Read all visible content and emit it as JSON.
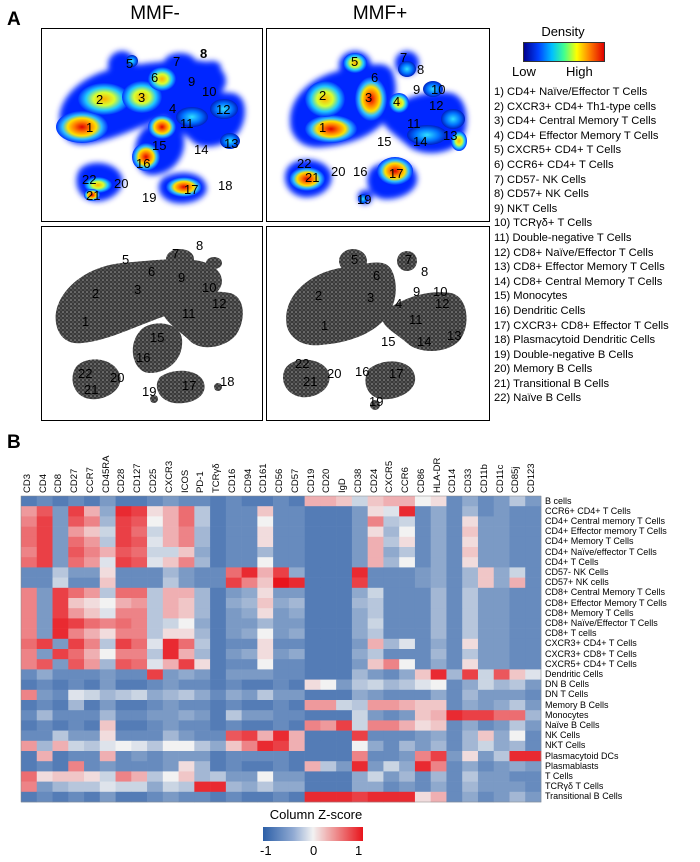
{
  "panel_a": {
    "letter": "A",
    "mmf_minus_title": "MMF-",
    "mmf_plus_title": "MMF+",
    "density_legend": {
      "title": "Density",
      "low": "Low",
      "high": "High"
    },
    "populations": [
      "1) CD4+ Naïve/Effector T Cells",
      "2) CXCR3+ CD4+ Th1-type cells",
      "3) CD4+ Central Memory T Cells",
      "4) CD4+ Effector Memory T Cells",
      "5) CXCR5+ CD4+ T Cells",
      "6) CCR6+ CD4+ T Cells",
      "7) CD57- NK Cells",
      "8) CD57+ NK Cells",
      "9) NKT Cells",
      "10) TCRγδ+ T Cells",
      "11) Double-negative T Cells",
      "12) CD8+ Naïve/Effector T Cells",
      "13) CD8+ Effector Memory T Cells",
      "14) CD8+ Central Memory T Cells",
      "15) Monocytes",
      "16) Dendritic Cells",
      "17) CXCR3+ CD8+ Effector T Cells",
      "18) Plasmacytoid Dendritic Cells",
      "19) Double-negative B Cells",
      "20) Memory B Cells",
      "21) Transitional B Cells",
      "22) Naïve B Cells"
    ],
    "cluster_labels_minus": [
      "1",
      "2",
      "3",
      "4",
      "5",
      "6",
      "7",
      "8",
      "9",
      "10",
      "11",
      "12",
      "13",
      "14",
      "15",
      "16",
      "17",
      "18",
      "19",
      "20",
      "21",
      "22"
    ],
    "cluster_labels_plus": [
      "1",
      "2",
      "3",
      "4",
      "5",
      "6",
      "7",
      "8",
      "9",
      "10",
      "11",
      "12",
      "13",
      "14",
      "15",
      "16",
      "17",
      "18",
      "19",
      "20",
      "21",
      "22"
    ]
  },
  "panel_b": {
    "letter": "B",
    "colorbar": {
      "title": "Column Z-score",
      "min_label": "-1",
      "mid_label": "0",
      "max_label": "1"
    },
    "colors": {
      "low": "#2c5fa7",
      "mid": "#f2f2f2",
      "high": "#e8141b"
    }
  },
  "chart_data": {
    "type": "heatmap",
    "title": "",
    "xlabel": "",
    "ylabel": "",
    "colorbar_label": "Column Z-score",
    "zlim": [
      -1,
      1
    ],
    "columns": [
      "CD3",
      "CD4",
      "CD8",
      "CD27",
      "CCR7",
      "CD45RA",
      "CD28",
      "CD127",
      "CD25",
      "CXCR3",
      "ICOS",
      "PD-1",
      "TCRγδ",
      "CD16",
      "CD94",
      "CD161",
      "CD56",
      "CD57",
      "CD19",
      "CD20",
      "IgD",
      "CD38",
      "CD24",
      "CXCR5",
      "CCR6",
      "CD86",
      "HLA-DR",
      "CD14",
      "CD33",
      "CD11b",
      "CD11c",
      "CD85j",
      "CD123"
    ],
    "rows": [
      "B cells",
      "CCR6+ CD4+ T Cells",
      "CD4+ Central memory T Cells",
      "CD4+ Effector memory T Cells",
      "CD4+ Memory T Cells",
      "CD4+ Naïve/effector T Cells",
      "CD4+ T Cells",
      "CD57- NK Cells",
      "CD57+ NK cells",
      "CD8+ Central Memory T Cells",
      "CD8+ Effector Memory T Cells",
      "CD8+ Memory T Cells",
      "CD8+ Naïve/Effector T Cells",
      "CD8+ T cells",
      "CXCR3+ CD4+ T Cells",
      "CXCR3+ CD8+ T Cells",
      "CXCR5+ CD4+ T Cells",
      "Dendritic Cells",
      "DN B Cells",
      "DN T Cells",
      "Memory B Cells",
      "Monocytes",
      "Naïve B Cells",
      "NK Cells",
      "NKT Cells",
      "Plasmacytoid DCs",
      "Plasmablasts",
      "T Cells",
      "TCRγδ T Cells",
      "Transitional B Cells"
    ],
    "values": [
      [
        -0.8,
        -0.7,
        -0.8,
        -0.7,
        -0.8,
        -0.6,
        -0.8,
        -0.8,
        -0.7,
        -0.6,
        -0.7,
        -0.7,
        -0.8,
        -0.7,
        -0.8,
        -0.8,
        -0.7,
        -0.8,
        0.3,
        0.3,
        0.2,
        -0.2,
        0.2,
        0.3,
        0.3,
        0.0,
        0.1,
        -0.7,
        -0.5,
        -0.7,
        -0.6,
        -0.3,
        -0.6
      ],
      [
        0.4,
        0.7,
        -0.6,
        0.8,
        0.3,
        -0.5,
        0.9,
        0.8,
        0.1,
        0.3,
        0.6,
        -0.3,
        -0.8,
        -0.7,
        -0.7,
        0.2,
        -0.7,
        -0.7,
        -0.8,
        -0.8,
        -0.8,
        -0.6,
        0.1,
        -0.1,
        0.9,
        -0.7,
        -0.5,
        -0.7,
        -0.4,
        -0.7,
        -0.6,
        -0.7,
        -0.7
      ],
      [
        0.5,
        0.8,
        -0.6,
        0.7,
        0.5,
        -0.4,
        0.8,
        0.7,
        0.0,
        0.3,
        0.6,
        -0.3,
        -0.8,
        -0.7,
        -0.7,
        0.0,
        -0.7,
        -0.7,
        -0.8,
        -0.8,
        -0.8,
        -0.6,
        0.5,
        -0.3,
        -0.2,
        -0.7,
        -0.5,
        -0.7,
        0.1,
        -0.6,
        -0.6,
        -0.7,
        -0.7
      ],
      [
        0.6,
        0.8,
        -0.6,
        0.4,
        0.2,
        -0.2,
        0.8,
        0.6,
        -0.2,
        0.3,
        0.5,
        -0.4,
        -0.8,
        -0.7,
        -0.7,
        0.1,
        -0.7,
        -0.7,
        -0.8,
        -0.8,
        -0.8,
        -0.6,
        0.1,
        -0.4,
        0.0,
        -0.7,
        -0.5,
        -0.7,
        0.2,
        -0.6,
        -0.6,
        -0.7,
        -0.7
      ],
      [
        0.6,
        0.8,
        -0.6,
        0.6,
        0.4,
        -0.3,
        0.8,
        0.7,
        -0.1,
        0.3,
        0.5,
        -0.4,
        -0.8,
        -0.7,
        -0.7,
        0.1,
        -0.7,
        -0.7,
        -0.8,
        -0.8,
        -0.8,
        -0.6,
        0.3,
        -0.3,
        0.1,
        -0.7,
        -0.5,
        -0.7,
        0.1,
        -0.6,
        -0.6,
        -0.7,
        -0.7
      ],
      [
        0.5,
        0.8,
        -0.6,
        0.7,
        0.5,
        0.3,
        0.7,
        0.6,
        -0.2,
        -0.2,
        0.2,
        -0.5,
        -0.8,
        -0.7,
        -0.7,
        -0.4,
        -0.7,
        -0.7,
        -0.8,
        -0.8,
        -0.8,
        -0.6,
        0.3,
        -0.5,
        -0.3,
        -0.7,
        -0.5,
        -0.7,
        0.2,
        -0.6,
        -0.6,
        -0.7,
        -0.7
      ],
      [
        0.6,
        0.8,
        -0.6,
        0.6,
        0.4,
        -0.1,
        0.8,
        0.7,
        -0.1,
        0.2,
        0.5,
        -0.4,
        -0.8,
        -0.7,
        -0.7,
        0.0,
        -0.7,
        -0.7,
        -0.8,
        -0.8,
        -0.8,
        -0.6,
        0.3,
        -0.4,
        0.0,
        -0.7,
        -0.5,
        -0.7,
        0.1,
        -0.6,
        -0.6,
        -0.7,
        -0.7
      ],
      [
        -0.7,
        -0.7,
        -0.3,
        -0.6,
        -0.6,
        0.1,
        -0.7,
        -0.7,
        -0.7,
        -0.4,
        -0.6,
        -0.7,
        -0.7,
        0.6,
        0.9,
        0.3,
        0.8,
        -0.5,
        -0.8,
        -0.8,
        -0.8,
        0.9,
        -0.7,
        -0.7,
        -0.7,
        -0.6,
        -0.5,
        -0.7,
        -0.4,
        0.2,
        -0.5,
        -0.2,
        -0.7
      ],
      [
        -0.7,
        -0.7,
        -0.2,
        -0.7,
        -0.7,
        0.2,
        -0.7,
        -0.7,
        -0.7,
        -0.3,
        -0.6,
        -0.7,
        -0.7,
        0.8,
        0.5,
        0.2,
        1.0,
        0.9,
        -0.8,
        -0.8,
        -0.8,
        0.8,
        -0.7,
        -0.7,
        -0.7,
        -0.6,
        -0.5,
        -0.7,
        -0.4,
        0.2,
        -0.5,
        0.3,
        -0.7
      ],
      [
        0.5,
        -0.6,
        0.8,
        0.6,
        0.4,
        -0.3,
        0.6,
        0.6,
        -0.3,
        0.3,
        0.3,
        -0.4,
        -0.8,
        -0.6,
        -0.5,
        0.1,
        -0.6,
        -0.6,
        -0.8,
        -0.8,
        -0.8,
        -0.5,
        -0.2,
        -0.7,
        -0.7,
        -0.7,
        -0.4,
        -0.7,
        -0.3,
        -0.6,
        -0.6,
        -0.7,
        -0.7
      ],
      [
        0.5,
        -0.6,
        0.8,
        0.2,
        0.1,
        0.0,
        0.3,
        0.4,
        -0.3,
        0.3,
        0.2,
        -0.4,
        -0.8,
        -0.5,
        -0.4,
        0.2,
        -0.5,
        -0.4,
        -0.8,
        -0.8,
        -0.8,
        -0.4,
        -0.3,
        -0.7,
        -0.7,
        -0.7,
        -0.4,
        -0.7,
        -0.3,
        -0.6,
        -0.6,
        -0.7,
        -0.7
      ],
      [
        0.5,
        -0.6,
        0.8,
        0.4,
        0.2,
        -0.1,
        0.5,
        0.5,
        -0.3,
        0.3,
        0.2,
        -0.4,
        -0.8,
        -0.6,
        -0.5,
        0.1,
        -0.6,
        -0.5,
        -0.8,
        -0.8,
        -0.8,
        -0.5,
        -0.3,
        -0.7,
        -0.7,
        -0.7,
        -0.4,
        -0.7,
        -0.3,
        -0.6,
        -0.6,
        -0.7,
        -0.7
      ],
      [
        0.5,
        -0.6,
        0.9,
        0.8,
        0.6,
        0.5,
        0.6,
        0.5,
        -0.3,
        -0.2,
        0.0,
        -0.5,
        -0.8,
        -0.6,
        -0.6,
        -0.4,
        -0.6,
        -0.6,
        -0.8,
        -0.8,
        -0.8,
        -0.5,
        -0.2,
        -0.7,
        -0.7,
        -0.7,
        -0.4,
        -0.7,
        -0.3,
        -0.6,
        -0.6,
        -0.7,
        -0.7
      ],
      [
        0.5,
        -0.6,
        0.9,
        0.5,
        0.3,
        0.1,
        0.5,
        0.5,
        -0.3,
        0.1,
        0.1,
        -0.4,
        -0.8,
        -0.6,
        -0.5,
        0.0,
        -0.6,
        -0.5,
        -0.8,
        -0.8,
        -0.8,
        -0.5,
        -0.3,
        -0.7,
        -0.7,
        -0.7,
        -0.4,
        -0.7,
        -0.3,
        -0.6,
        -0.6,
        -0.7,
        -0.7
      ],
      [
        0.6,
        0.8,
        -0.6,
        0.8,
        0.5,
        -0.3,
        0.8,
        0.6,
        -0.1,
        0.9,
        0.6,
        -0.3,
        -0.8,
        -0.7,
        -0.7,
        0.1,
        -0.7,
        -0.7,
        -0.8,
        -0.8,
        -0.8,
        -0.6,
        0.3,
        -0.4,
        -0.1,
        -0.7,
        -0.5,
        -0.7,
        0.1,
        -0.6,
        -0.6,
        -0.7,
        -0.7
      ],
      [
        0.5,
        -0.6,
        0.8,
        0.6,
        0.3,
        0.0,
        0.5,
        0.5,
        -0.3,
        0.9,
        0.3,
        -0.4,
        -0.8,
        -0.6,
        -0.5,
        0.1,
        -0.6,
        -0.5,
        -0.8,
        -0.8,
        -0.8,
        -0.5,
        -0.3,
        -0.7,
        -0.7,
        -0.7,
        -0.4,
        -0.7,
        -0.3,
        -0.6,
        -0.6,
        -0.7,
        -0.7
      ],
      [
        0.5,
        0.7,
        -0.6,
        0.7,
        0.4,
        -0.4,
        0.7,
        0.6,
        -0.1,
        0.3,
        0.8,
        0.1,
        -0.8,
        -0.7,
        -0.7,
        0.0,
        -0.7,
        -0.7,
        -0.8,
        -0.8,
        -0.8,
        -0.6,
        0.2,
        0.5,
        0.0,
        -0.7,
        -0.5,
        -0.7,
        0.1,
        -0.6,
        -0.6,
        -0.7,
        -0.7
      ],
      [
        -0.7,
        -0.5,
        -0.7,
        -0.7,
        -0.7,
        -0.6,
        -0.7,
        -0.7,
        0.8,
        -0.6,
        -0.5,
        -0.6,
        -0.8,
        -0.6,
        -0.6,
        -0.6,
        -0.7,
        -0.7,
        -0.8,
        -0.8,
        -0.8,
        -0.4,
        -0.6,
        -0.7,
        -0.5,
        0.2,
        0.9,
        -0.4,
        0.8,
        -0.2,
        0.7,
        0.2,
        -0.1
      ],
      [
        -0.8,
        -0.7,
        -0.8,
        -0.7,
        -0.8,
        -0.6,
        -0.8,
        -0.8,
        -0.7,
        -0.6,
        -0.7,
        -0.7,
        -0.8,
        -0.7,
        -0.8,
        -0.8,
        -0.7,
        -0.8,
        0.1,
        0.0,
        -0.6,
        -0.3,
        -0.2,
        -0.4,
        -0.3,
        -0.1,
        0.0,
        -0.7,
        -0.5,
        -0.2,
        -0.4,
        -0.3,
        -0.6
      ],
      [
        0.5,
        -0.6,
        -0.7,
        -0.1,
        -0.2,
        -0.4,
        -0.3,
        -0.2,
        -0.5,
        -0.4,
        -0.3,
        -0.5,
        -0.7,
        -0.5,
        -0.6,
        -0.3,
        -0.6,
        -0.6,
        -0.8,
        -0.8,
        -0.8,
        -0.5,
        -0.6,
        -0.7,
        -0.7,
        -0.7,
        -0.5,
        -0.7,
        -0.4,
        -0.6,
        -0.6,
        -0.6,
        -0.7
      ],
      [
        -0.8,
        -0.7,
        -0.8,
        -0.4,
        -0.8,
        -0.6,
        -0.8,
        -0.8,
        -0.7,
        -0.6,
        -0.7,
        -0.7,
        -0.8,
        -0.7,
        -0.8,
        -0.8,
        -0.7,
        -0.8,
        0.4,
        0.4,
        -0.2,
        -0.3,
        0.4,
        0.4,
        0.3,
        0.2,
        0.2,
        -0.7,
        -0.5,
        -0.6,
        -0.5,
        -0.3,
        -0.6
      ],
      [
        -0.7,
        -0.4,
        -0.7,
        -0.7,
        -0.7,
        -0.4,
        -0.7,
        -0.7,
        -0.6,
        -0.6,
        -0.5,
        -0.6,
        -0.8,
        -0.3,
        -0.6,
        -0.6,
        -0.7,
        -0.7,
        -0.8,
        -0.8,
        -0.8,
        -0.2,
        -0.6,
        -0.7,
        -0.6,
        0.2,
        0.3,
        0.9,
        0.8,
        0.8,
        0.6,
        0.6,
        -0.4
      ],
      [
        -0.8,
        -0.7,
        -0.8,
        -0.7,
        -0.8,
        0.2,
        -0.8,
        -0.8,
        -0.7,
        -0.6,
        -0.7,
        -0.7,
        -0.8,
        -0.7,
        -0.8,
        -0.8,
        -0.7,
        -0.8,
        0.5,
        0.4,
        0.8,
        -0.2,
        0.5,
        0.5,
        0.3,
        0.1,
        0.2,
        -0.7,
        -0.5,
        -0.7,
        -0.6,
        -0.3,
        -0.6
      ],
      [
        -0.7,
        -0.7,
        -0.3,
        -0.6,
        -0.6,
        0.1,
        -0.7,
        -0.7,
        -0.7,
        -0.4,
        -0.6,
        -0.7,
        -0.7,
        0.7,
        0.8,
        0.3,
        0.9,
        0.3,
        -0.8,
        -0.8,
        -0.8,
        0.8,
        -0.7,
        -0.7,
        -0.7,
        -0.6,
        -0.5,
        -0.7,
        -0.4,
        0.2,
        -0.5,
        0.0,
        -0.7
      ],
      [
        0.4,
        -0.4,
        0.3,
        -0.2,
        -0.3,
        -0.1,
        0.0,
        -0.1,
        -0.3,
        0.0,
        0.0,
        -0.3,
        -0.5,
        0.2,
        0.5,
        0.9,
        0.8,
        0.3,
        -0.8,
        -0.8,
        -0.8,
        0.0,
        -0.5,
        -0.7,
        -0.4,
        -0.6,
        -0.4,
        -0.7,
        -0.4,
        -0.2,
        -0.5,
        -0.4,
        -0.7
      ],
      [
        -0.8,
        0.3,
        -0.8,
        -0.7,
        -0.7,
        0.3,
        -0.7,
        -0.6,
        -0.7,
        -0.6,
        -0.6,
        -0.6,
        -0.8,
        -0.7,
        -0.7,
        -0.7,
        -0.7,
        -0.8,
        -0.8,
        -0.8,
        -0.8,
        0.5,
        -0.7,
        -0.7,
        -0.6,
        0.5,
        0.8,
        -0.6,
        0.1,
        -0.6,
        -0.3,
        0.9,
        0.9
      ],
      [
        -0.8,
        -0.7,
        -0.8,
        0.5,
        -0.7,
        -0.6,
        -0.7,
        -0.7,
        -0.7,
        -0.6,
        0.1,
        -0.4,
        -0.8,
        -0.7,
        -0.8,
        -0.8,
        -0.7,
        -0.8,
        0.3,
        -0.3,
        -0.6,
        0.9,
        -0.6,
        -0.2,
        -0.5,
        0.9,
        0.5,
        -0.7,
        -0.5,
        -0.7,
        -0.6,
        -0.5,
        -0.6
      ],
      [
        0.6,
        0.1,
        0.2,
        0.2,
        0.1,
        -0.2,
        0.5,
        0.3,
        -0.3,
        0.0,
        0.2,
        -0.4,
        -0.3,
        -0.6,
        -0.6,
        0.0,
        -0.6,
        -0.6,
        -0.8,
        -0.8,
        -0.8,
        -0.5,
        -0.2,
        -0.6,
        -0.4,
        -0.7,
        -0.4,
        -0.7,
        -0.3,
        -0.6,
        -0.6,
        -0.7,
        -0.7
      ],
      [
        0.5,
        -0.6,
        -0.4,
        -0.3,
        -0.3,
        -0.1,
        -0.2,
        -0.2,
        -0.5,
        -0.2,
        -0.3,
        0.9,
        0.9,
        -0.4,
        -0.5,
        -0.3,
        -0.5,
        -0.5,
        -0.8,
        -0.8,
        -0.8,
        -0.5,
        -0.5,
        -0.7,
        -0.6,
        -0.7,
        -0.5,
        -0.7,
        -0.4,
        -0.6,
        -0.6,
        -0.6,
        -0.7
      ],
      [
        -0.8,
        -0.7,
        -0.8,
        -0.7,
        -0.8,
        -0.6,
        -0.8,
        -0.8,
        -0.7,
        -0.6,
        -0.7,
        -0.7,
        -0.8,
        -0.7,
        -0.8,
        -0.8,
        -0.7,
        -0.8,
        0.9,
        0.9,
        0.9,
        0.8,
        0.9,
        0.9,
        0.9,
        0.1,
        0.3,
        -0.7,
        -0.5,
        -0.7,
        -0.6,
        -0.4,
        -0.6
      ]
    ]
  }
}
